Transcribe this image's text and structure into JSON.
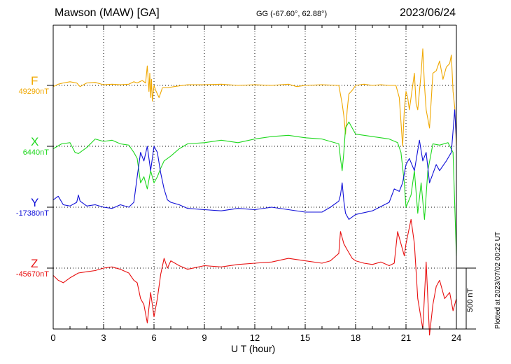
{
  "header": {
    "title": "Mawson (MAW)  [GA]",
    "coords": "GG (-67.60°,  62.88°)",
    "date": "2023/06/24"
  },
  "footer": {
    "plotted": "Plotted at 2023/07/02 00:22 UT",
    "scale_label": "500 nT"
  },
  "chart_data": {
    "type": "line",
    "xlabel": "U T (hour)",
    "xlim": [
      0,
      24
    ],
    "xticks": [
      "0",
      "3",
      "6",
      "9",
      "12",
      "15",
      "18",
      "21",
      "24"
    ],
    "scale_bar_nT": 500,
    "grid": true,
    "series": [
      {
        "name": "F",
        "baseline_label": "49290nT",
        "color": "#f0a800",
        "x": [
          0,
          0.3,
          0.6,
          1.0,
          1.4,
          1.6,
          2.0,
          2.5,
          3.0,
          3.5,
          4.0,
          4.5,
          4.8,
          5.0,
          5.3,
          5.5,
          5.6,
          5.7,
          5.75,
          5.8,
          5.85,
          5.9,
          6.0,
          6.1,
          6.3,
          6.5,
          6.8,
          7.2,
          8.0,
          9.0,
          10.0,
          11.0,
          12.0,
          13.0,
          14.0,
          14.5,
          15.0,
          16.0,
          17.0,
          17.2,
          17.3,
          17.4,
          17.5,
          17.6,
          17.8,
          18.0,
          18.5,
          19.0,
          19.5,
          20.0,
          20.4,
          20.6,
          20.7,
          20.8,
          20.9,
          21.0,
          21.1,
          21.2,
          21.4,
          21.5,
          21.6,
          21.7,
          21.8,
          21.9,
          22.0,
          22.1,
          22.2,
          22.4,
          22.6,
          22.8,
          23.0,
          23.2,
          23.4,
          23.6,
          23.7,
          23.8,
          23.9,
          24.0
        ],
        "y": [
          -10,
          10,
          20,
          30,
          20,
          -10,
          20,
          25,
          5,
          10,
          5,
          10,
          30,
          20,
          40,
          20,
          160,
          -50,
          100,
          -100,
          50,
          -130,
          0,
          -40,
          -100,
          -20,
          -20,
          -10,
          5,
          5,
          10,
          0,
          5,
          0,
          10,
          -10,
          0,
          5,
          0,
          -150,
          -250,
          -400,
          -200,
          -70,
          -40,
          0,
          10,
          0,
          5,
          0,
          0,
          -100,
          -300,
          -500,
          -200,
          -50,
          -100,
          -200,
          0,
          100,
          -150,
          -200,
          -50,
          100,
          300,
          0,
          -200,
          -350,
          100,
          120,
          200,
          50,
          150,
          180,
          250,
          -50,
          -180,
          -500
        ]
      },
      {
        "name": "X",
        "baseline_label": "6440nT",
        "color": "#1ed81e",
        "x": [
          0,
          0.5,
          1.0,
          1.3,
          1.5,
          2.0,
          2.5,
          3.0,
          3.5,
          4.0,
          4.5,
          4.8,
          5.0,
          5.2,
          5.4,
          5.6,
          5.8,
          6.0,
          6.2,
          6.4,
          6.6,
          7.0,
          7.5,
          8.0,
          9.0,
          10.0,
          11.0,
          12.0,
          13.0,
          14.0,
          15.0,
          16.0,
          17.0,
          17.1,
          17.2,
          17.3,
          17.4,
          17.6,
          18.0,
          19.0,
          20.0,
          20.5,
          20.7,
          20.9,
          21.0,
          21.3,
          21.5,
          21.7,
          21.9,
          22.1,
          22.3,
          22.6,
          23.0,
          23.5,
          23.8,
          24.0
        ],
        "y": [
          -20,
          20,
          30,
          -50,
          -60,
          -10,
          60,
          40,
          50,
          20,
          10,
          -50,
          -100,
          -300,
          -250,
          -350,
          -200,
          -300,
          -250,
          -180,
          -120,
          -80,
          -20,
          20,
          30,
          50,
          30,
          60,
          80,
          90,
          70,
          60,
          20,
          -100,
          -200,
          -50,
          150,
          200,
          100,
          80,
          60,
          30,
          -50,
          -300,
          -500,
          -400,
          -200,
          -550,
          -300,
          -600,
          -200,
          20,
          10,
          30,
          -50,
          -900
        ]
      },
      {
        "name": "Y",
        "baseline_label": "-17380nT",
        "color": "#1010d8",
        "x": [
          0,
          0.3,
          0.6,
          1.0,
          1.4,
          1.5,
          1.6,
          2.0,
          2.5,
          3.0,
          3.5,
          4.0,
          4.5,
          4.8,
          5.0,
          5.2,
          5.4,
          5.6,
          5.8,
          6.0,
          6.2,
          6.4,
          6.6,
          6.8,
          7.0,
          7.5,
          8.0,
          9.0,
          10.0,
          11.0,
          12.0,
          13.0,
          14.0,
          15.0,
          16.0,
          16.5,
          17.0,
          17.1,
          17.2,
          17.3,
          17.4,
          17.6,
          18.0,
          19.0,
          20.0,
          20.3,
          20.6,
          20.8,
          21.0,
          21.2,
          21.5,
          21.8,
          22.0,
          22.2,
          22.4,
          22.8,
          23.0,
          23.4,
          23.7,
          23.9,
          24.0
        ],
        "y": [
          60,
          90,
          20,
          10,
          40,
          100,
          50,
          10,
          20,
          0,
          -10,
          20,
          0,
          40,
          250,
          450,
          380,
          500,
          300,
          500,
          450,
          280,
          150,
          60,
          40,
          20,
          -10,
          -20,
          -30,
          -10,
          -20,
          0,
          -20,
          -40,
          -40,
          0,
          50,
          100,
          200,
          50,
          -50,
          -100,
          -60,
          -30,
          40,
          150,
          130,
          200,
          350,
          400,
          300,
          550,
          380,
          450,
          200,
          350,
          300,
          380,
          450,
          800,
          550
        ]
      },
      {
        "name": "Z",
        "baseline_label": "-45670nT",
        "color": "#e81010",
        "x": [
          0,
          0.3,
          0.6,
          1.0,
          1.5,
          2.0,
          2.5,
          3.0,
          3.5,
          4.0,
          4.5,
          4.8,
          5.0,
          5.2,
          5.4,
          5.6,
          5.8,
          6.0,
          6.2,
          6.4,
          6.6,
          6.8,
          7.0,
          7.5,
          8.0,
          9.0,
          10.0,
          11.0,
          12.0,
          13.0,
          14.0,
          15.0,
          16.0,
          16.5,
          17.0,
          17.1,
          17.2,
          17.3,
          17.5,
          17.8,
          18.0,
          18.5,
          19.0,
          19.5,
          20.0,
          20.3,
          20.5,
          20.7,
          20.9,
          21.0,
          21.3,
          21.5,
          21.7,
          22.0,
          22.2,
          22.4,
          22.6,
          22.8,
          23.0,
          23.3,
          23.6,
          23.8,
          24.0
        ],
        "y": [
          -60,
          -100,
          -120,
          -80,
          -40,
          -30,
          -20,
          0,
          10,
          -10,
          -40,
          -100,
          -120,
          -250,
          -300,
          -450,
          -200,
          -400,
          -250,
          -50,
          80,
          0,
          60,
          20,
          -10,
          20,
          10,
          30,
          40,
          50,
          80,
          60,
          40,
          60,
          120,
          300,
          250,
          200,
          150,
          80,
          60,
          40,
          30,
          50,
          20,
          40,
          300,
          200,
          100,
          200,
          400,
          200,
          -250,
          -500,
          50,
          -550,
          -300,
          -150,
          -100,
          -250,
          -200,
          -350,
          -250
        ]
      }
    ]
  }
}
